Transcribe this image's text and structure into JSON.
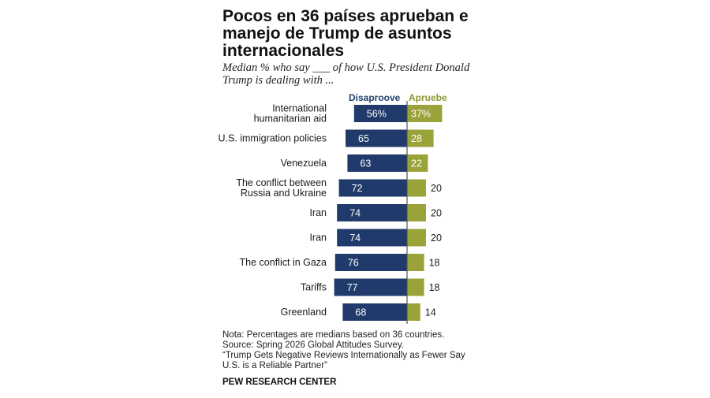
{
  "title": "Pocos en 36 países aprueban e manejo de Trump de asuntos internacionales",
  "subtitle": "Median % who say ___ of how U.S. President Donald Trump is dealing with ...",
  "legend": {
    "disapprove": "Disaproove",
    "approve": "Apruebe"
  },
  "colors": {
    "disapprove": "#1f3a6b",
    "approve": "#9aa33a",
    "divider": "#555555"
  },
  "chart_data": {
    "type": "bar",
    "orientation": "horizontal-diverging",
    "categories": [
      "International humanitarian aid",
      "U.S. immigration policies",
      "Venezuela",
      "The conflict between Russia and Ukraine",
      "Iran",
      "Iran",
      "The conflict in Gaza",
      "Tariffs",
      "Greenland"
    ],
    "series": [
      {
        "name": "Disaproove",
        "values": [
          56,
          65,
          63,
          72,
          74,
          74,
          76,
          77,
          68
        ],
        "labels": [
          "56%",
          "65",
          "63",
          "72",
          "74",
          "74",
          "76",
          "77",
          "68"
        ]
      },
      {
        "name": "Apruebe",
        "values": [
          37,
          28,
          22,
          20,
          20,
          20,
          18,
          18,
          14
        ],
        "labels": [
          "37%",
          "28",
          "22",
          "20",
          "20",
          "20",
          "18",
          "18",
          "14"
        ]
      }
    ]
  },
  "notes": [
    "Nota: Percentages are medians based on 36 countries.",
    "Source: Spring 2026 Global Attitudes Survey.",
    "“Trump Gets Negative Reviews Internationally as Fewer Say U.S. is a Reliable Partner”"
  ],
  "source_name": "PEW RESEARCH CENTER"
}
